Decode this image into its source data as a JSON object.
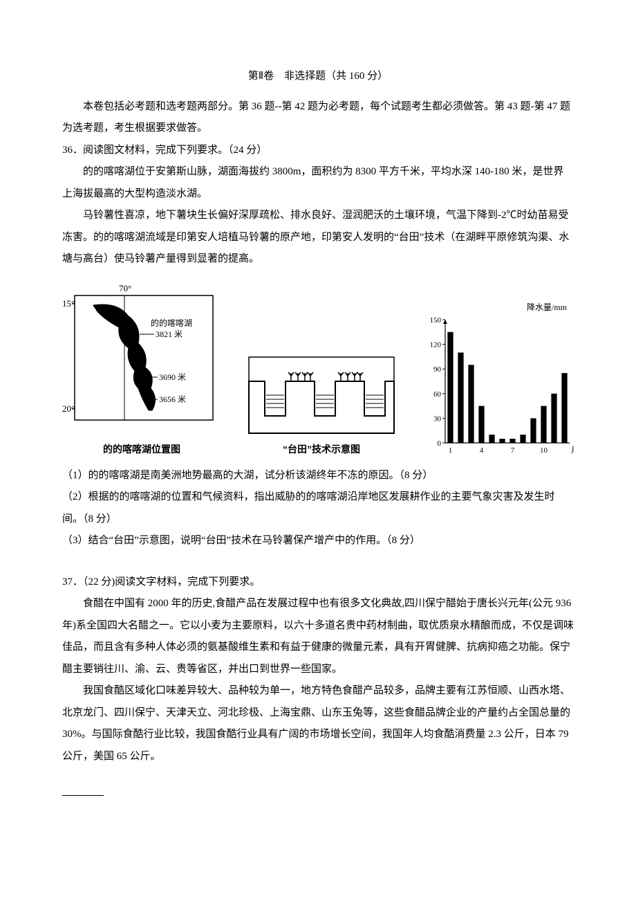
{
  "header": {
    "title": "第Ⅱ卷　非选择题（共 160 分）"
  },
  "intro": "本卷包括必考题和选考题两部分。第 36 题--第 42 题为必考题，每个试题考生都必须做答。第 43 题-第 47 题为选考题，考生根据要求做答。",
  "q36": {
    "stem": "36．阅读图文材料，完成下列要求。（24 分）",
    "p1": "的的喀喀湖位于安第斯山脉，湖面海拔约 3800m，面积约为 8300 平方千米，平均水深 140-180 米，是世界上海拔最高的大型构造淡水湖。",
    "p2": "马铃薯性喜凉，地下薯块生长偏好深厚疏松、排水良好、湿润肥沃的土壤环境，气温下降到-2℃时幼苗易受冻害。的的喀喀湖流域是印第安人培植马铃薯的原产地，印第安人发明的“台田”技术（在湖畔平原修筑沟渠、水塘与高台）使马铃薯产量得到显著的提高。",
    "sub1": "（1）的的喀喀湖是南美洲地势最高的大湖，试分析该湖终年不冻的原因。（8 分）",
    "sub2": "（2）根据的的喀喀湖的位置和气候资料，指出威胁的的喀喀湖沿岸地区发展耕作业的主要气象灾害及发生时间。（8 分）",
    "sub3": "（3）结合“台田”示意图，说明“台田”技术在马铃薯保产增产中的作用。（8 分）"
  },
  "q37": {
    "stem": "37．（22 分)阅读文字材料，完成下列要求。",
    "p1": "食醋在中国有 2000 年的历史,食醋产品在发展过程中也有很多文化典故,四川保宁醋始于唐长兴元年(公元 936 年)系全国四大名醋之一。它以小麦为主要原料，以六十多道名贵中药材制曲，取优质泉水精酿而成，不仅是调味佳品，而且含有多种人体必须的氨基酸维生素和有益于健康的微量元素，具有开胃健脾、抗病抑癌之功能。保宁醋主要销往川、渝、云、贵等省区，并出口到世界一些国家。",
    "p2": "我国食酷区域化口味差异较大、品种较为单一，地方特色食醋产品较多，品牌主要有江苏恒顺、山西水塔、北京龙门、四川保宁、天津天立、河北珍极、上海宝鼎、山东玉兔等，这些食醋品牌企业的产量约占全国总量的 30%。与国际食酷行业比较，我国食酷行业具有广阔的市场增长空间，我国年人均食酷消费量 2.3 公斤，日本 79 公斤，美国 65 公斤。"
  },
  "map": {
    "lon_label": "70°",
    "lat_top": "15°",
    "lat_bot": "20°",
    "lake_label": "的的喀喀湖",
    "h1": "3821 米",
    "h2": "3690 米",
    "h3": "3656 米",
    "caption": "的的喀喀湖位置图",
    "colors": {
      "land": "#000000",
      "bg": "#ffffff",
      "border": "#000000"
    }
  },
  "platform": {
    "caption": "“台田”技术示意图",
    "colors": {
      "soil": "#ffffff",
      "line": "#000000",
      "water_hatch": "#000000"
    }
  },
  "bar_chart": {
    "type": "bar",
    "title": "降水量/mm",
    "ylim": [
      0,
      150
    ],
    "yticks": [
      0,
      30,
      60,
      90,
      120,
      150
    ],
    "xlabel": "月份",
    "xticks_shown": [
      1,
      4,
      7,
      10
    ],
    "categories": [
      1,
      2,
      3,
      4,
      5,
      6,
      7,
      8,
      9,
      10,
      11,
      12
    ],
    "values": [
      135,
      110,
      95,
      45,
      10,
      5,
      5,
      10,
      30,
      45,
      60,
      85
    ],
    "bar_color": "#000000",
    "axis_color": "#000000",
    "tick_color": "#000000",
    "background_color": "#ffffff",
    "title_fontsize": 12,
    "tick_fontsize": 11,
    "bar_width": 0.55
  }
}
